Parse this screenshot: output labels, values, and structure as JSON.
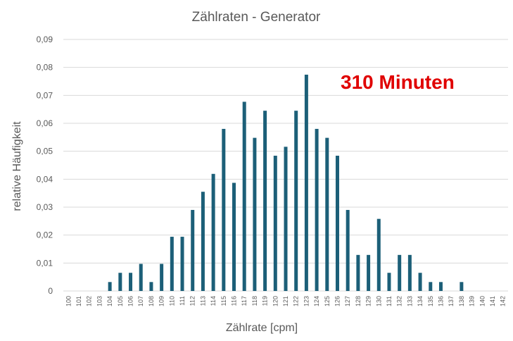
{
  "chart_data": {
    "type": "bar",
    "title": "Zählraten - Generator",
    "xlabel": "Zählrate [cpm]",
    "ylabel": "relative Häufigkeit",
    "annotation": "310 Minuten",
    "annotation_color": "#e00000",
    "bar_color": "#1c5f78",
    "ylim": [
      0,
      0.09
    ],
    "yticks": [
      "0",
      "0,01",
      "0,02",
      "0,03",
      "0,04",
      "0,05",
      "0,06",
      "0,07",
      "0,08",
      "0,09"
    ],
    "grid": true,
    "legend": "none",
    "categories": [
      "100",
      "101",
      "102",
      "103",
      "104",
      "105",
      "106",
      "107",
      "108",
      "109",
      "110",
      "111",
      "112",
      "113",
      "114",
      "115",
      "116",
      "117",
      "118",
      "119",
      "120",
      "121",
      "122",
      "123",
      "124",
      "125",
      "126",
      "127",
      "128",
      "129",
      "130",
      "131",
      "132",
      "133",
      "134",
      "135",
      "136",
      "137",
      "138",
      "139",
      "140",
      "141",
      "142"
    ],
    "values": [
      0,
      0,
      0,
      0,
      0.0032,
      0.0065,
      0.0065,
      0.0097,
      0.0032,
      0.0097,
      0.0194,
      0.0194,
      0.029,
      0.0355,
      0.0419,
      0.058,
      0.0387,
      0.0677,
      0.0548,
      0.0645,
      0.0484,
      0.0516,
      0.0645,
      0.0774,
      0.058,
      0.0548,
      0.0484,
      0.029,
      0.0129,
      0.0129,
      0.0258,
      0.0065,
      0.0129,
      0.0129,
      0.0065,
      0.0032,
      0.0032,
      0,
      0.0032,
      0,
      0,
      0,
      0
    ]
  }
}
